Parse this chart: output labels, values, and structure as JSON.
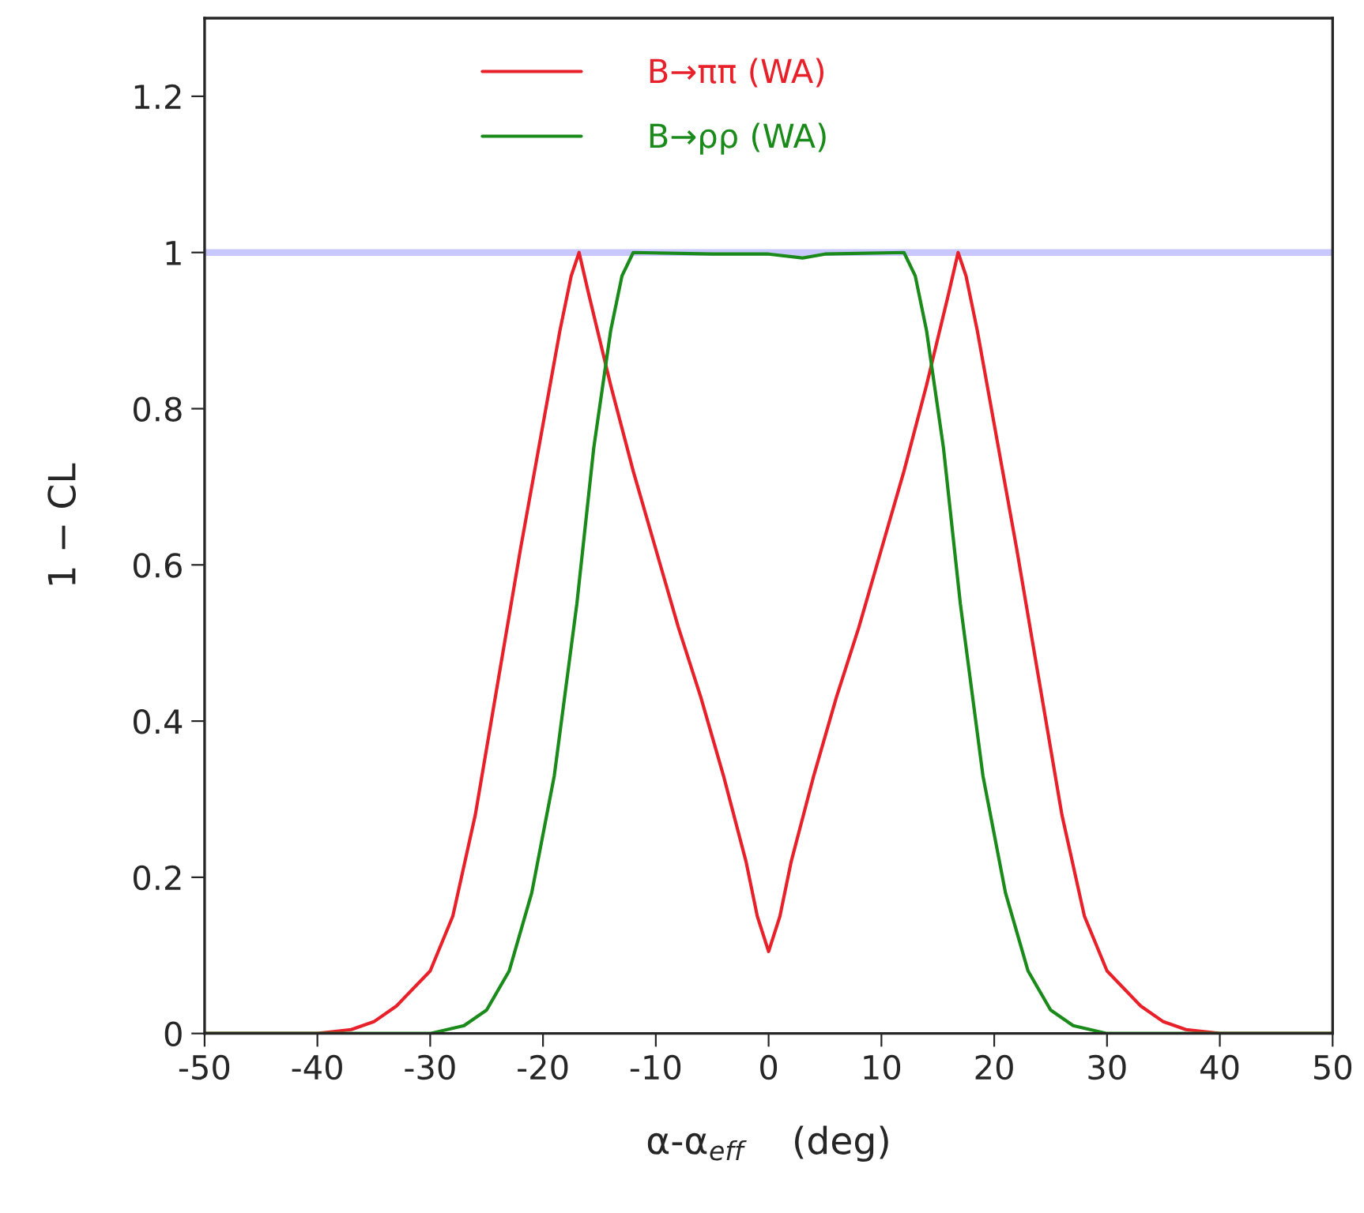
{
  "chart_data": {
    "type": "line",
    "xlabel": "α-α$_{eff}$    (deg)",
    "ylabel": "1 − CL",
    "xlim": [
      -50,
      50
    ],
    "xticks": [
      -50,
      -40,
      -30,
      -20,
      -10,
      0,
      10,
      20,
      30,
      40,
      50
    ],
    "ylim": [
      0,
      1.3
    ],
    "yticks": [
      0,
      0.2,
      0.4,
      0.6,
      0.8,
      1,
      1.2
    ],
    "grid": false,
    "legend": "top left",
    "marker": "none",
    "line_style": "solid",
    "ref_lines": [
      {
        "axis": "y",
        "value": 1,
        "color": "#c8c8ff"
      }
    ],
    "series": [
      {
        "name": "B→ππ (WA)",
        "color": "#e8202a",
        "x": [
          -50,
          -40,
          -37,
          -35,
          -33,
          -30,
          -28,
          -26,
          -24,
          -22,
          -20,
          -18.5,
          -17.5,
          -16.8,
          -16,
          -14,
          -12,
          -10,
          -8,
          -6,
          -4,
          -2,
          -1,
          0,
          1,
          2,
          4,
          6,
          8,
          10,
          12,
          14,
          16,
          16.8,
          17.5,
          18.5,
          20,
          22,
          24,
          26,
          28,
          30,
          33,
          35,
          37,
          40,
          50
        ],
        "values": [
          0,
          0,
          0.005,
          0.015,
          0.035,
          0.08,
          0.15,
          0.28,
          0.45,
          0.62,
          0.78,
          0.9,
          0.97,
          1.0,
          0.95,
          0.83,
          0.72,
          0.62,
          0.52,
          0.43,
          0.33,
          0.22,
          0.15,
          0.105,
          0.15,
          0.22,
          0.33,
          0.43,
          0.52,
          0.62,
          0.72,
          0.83,
          0.95,
          1.0,
          0.97,
          0.9,
          0.78,
          0.62,
          0.45,
          0.28,
          0.15,
          0.08,
          0.035,
          0.015,
          0.005,
          0,
          0
        ]
      },
      {
        "name": "B→ρρ (WA)",
        "color": "#1a8a1a",
        "x": [
          -50,
          -30,
          -27,
          -25,
          -23,
          -21,
          -19,
          -17,
          -15.5,
          -14,
          -13,
          -12,
          -5,
          0,
          3,
          5,
          12,
          13,
          14,
          15.5,
          17,
          19,
          21,
          23,
          25,
          27,
          30,
          50
        ],
        "values": [
          0,
          0,
          0.01,
          0.03,
          0.08,
          0.18,
          0.33,
          0.55,
          0.75,
          0.9,
          0.97,
          1.0,
          0.998,
          0.998,
          0.993,
          0.998,
          1.0,
          0.97,
          0.9,
          0.75,
          0.55,
          0.33,
          0.18,
          0.08,
          0.03,
          0.01,
          0,
          0
        ]
      }
    ]
  }
}
